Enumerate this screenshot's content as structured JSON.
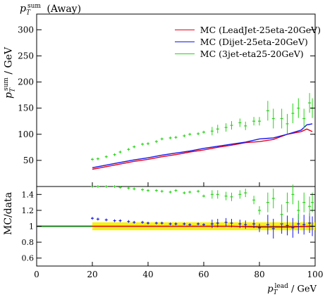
{
  "chart_data": [
    {
      "type": "line",
      "panel": "main",
      "title": "p_T^sum (Away)",
      "ylabel": "p_T^sum / GeV",
      "xlabel": "",
      "xlim": [
        0,
        100
      ],
      "ylim": [
        0,
        330
      ],
      "yticks": [
        50,
        100,
        150,
        200,
        250,
        300
      ],
      "legend_position": "top-right",
      "series": [
        {
          "name": "MC (LeadJet-25eta-20GeV)",
          "color": "#e8001c",
          "style": "line",
          "x": [
            20,
            25,
            30,
            35,
            40,
            45,
            50,
            55,
            60,
            65,
            70,
            75,
            80,
            85,
            90,
            95,
            97,
            99
          ],
          "y": [
            33,
            38,
            43,
            48,
            52,
            57,
            61,
            66,
            70,
            75,
            79,
            84,
            86,
            90,
            100,
            105,
            110,
            105
          ]
        },
        {
          "name": "MC (Dijet-25eta-20GeV)",
          "color": "#1818e8",
          "style": "line",
          "x": [
            20,
            25,
            30,
            35,
            40,
            45,
            50,
            55,
            60,
            65,
            70,
            75,
            80,
            85,
            90,
            95,
            97,
            99
          ],
          "y": [
            36,
            41,
            46,
            51,
            55,
            60,
            64,
            68,
            73,
            77,
            81,
            85,
            91,
            93,
            100,
            108,
            118,
            120
          ]
        },
        {
          "name": "MC (3jet-eta25-20GeV)",
          "color": "#26d416",
          "style": "points",
          "x": [
            20,
            22,
            25,
            28,
            30,
            33,
            35,
            38,
            40,
            43,
            45,
            48,
            50,
            53,
            55,
            58,
            60,
            63,
            65,
            68,
            70,
            73,
            75,
            78,
            80,
            83,
            85,
            88,
            90,
            92,
            94,
            96,
            98,
            99
          ],
          "y": [
            52,
            53,
            57,
            61,
            66,
            71,
            76,
            81,
            82,
            86,
            91,
            93,
            94,
            97,
            100,
            101,
            104,
            106,
            110,
            113,
            117,
            122,
            116,
            125,
            125,
            145,
            130,
            130,
            120,
            140,
            150,
            130,
            160,
            150
          ]
        }
      ]
    },
    {
      "type": "line",
      "panel": "ratio",
      "ylabel": "MC/data",
      "xlabel": "p_T^lead / GeV",
      "xlim": [
        0,
        100
      ],
      "ylim": [
        0.5,
        1.5
      ],
      "xticks": [
        0,
        20,
        40,
        60,
        80,
        100
      ],
      "yticks": [
        0.6,
        0.8,
        1,
        1.2,
        1.4
      ],
      "grid": false,
      "series": [
        {
          "name": "MC (LeadJet-25eta-20GeV)",
          "color": "#e8001c",
          "style": "line",
          "x": [
            20,
            30,
            40,
            50,
            60,
            70,
            80,
            90,
            99
          ],
          "y": [
            1.0,
            1.0,
            1.0,
            1.0,
            1.0,
            1.0,
            0.99,
            0.99,
            1.0
          ]
        },
        {
          "name": "MC (Dijet-25eta-20GeV)",
          "color": "#1818e8",
          "style": "points",
          "x": [
            20,
            22,
            25,
            28,
            30,
            33,
            35,
            38,
            40,
            43,
            45,
            48,
            50,
            53,
            55,
            58,
            60,
            63,
            65,
            68,
            70,
            73,
            75,
            78,
            80,
            83,
            85,
            88,
            90,
            92,
            94,
            96,
            98,
            99
          ],
          "y": [
            1.1,
            1.09,
            1.08,
            1.07,
            1.07,
            1.06,
            1.05,
            1.05,
            1.04,
            1.04,
            1.04,
            1.03,
            1.03,
            1.03,
            1.02,
            1.03,
            1.02,
            1.03,
            1.04,
            1.05,
            1.04,
            1.03,
            1.02,
            1.03,
            0.98,
            1.02,
            0.97,
            1.03,
            1.01,
            0.98,
            1.03,
            1.02,
            1.04,
            1.0
          ]
        },
        {
          "name": "MC (3jet-eta25-20GeV)",
          "color": "#26d416",
          "style": "points",
          "x": [
            20,
            22,
            25,
            28,
            30,
            33,
            35,
            38,
            40,
            43,
            45,
            48,
            50,
            53,
            55,
            58,
            60,
            63,
            65,
            68,
            70,
            73,
            75,
            78,
            80,
            83,
            85,
            88,
            90,
            92,
            94,
            96,
            98,
            99
          ],
          "y": [
            1.6,
            1.58,
            1.55,
            1.5,
            1.49,
            1.48,
            1.47,
            1.46,
            1.45,
            1.45,
            1.44,
            1.43,
            1.45,
            1.42,
            1.43,
            1.44,
            1.38,
            1.4,
            1.4,
            1.38,
            1.37,
            1.4,
            1.42,
            1.33,
            1.2,
            1.3,
            1.35,
            1.15,
            1.3,
            1.4,
            1.2,
            1.3,
            1.25,
            1.3
          ]
        },
        {
          "name": "data",
          "color": "#000000",
          "style": "reference",
          "x": [
            0,
            100
          ],
          "y": [
            1,
            1
          ]
        }
      ]
    }
  ],
  "labels": {
    "title": "p_T^sum (Away)",
    "ylabel_top": "p_T^sum / GeV",
    "ylabel_bottom": "MC/data",
    "xlabel": "p_T^lead / GeV",
    "legend": [
      {
        "label": "MC (LeadJet-25eta-20GeV)",
        "color": "#e8001c"
      },
      {
        "label": "MC (Dijet-25eta-20GeV)",
        "color": "#1818e8"
      },
      {
        "label": "MC (3jet-eta25-20GeV)",
        "color": "#26d416"
      }
    ]
  },
  "colors": {
    "band": "#f5f000",
    "reference": "#1a7f1a"
  }
}
